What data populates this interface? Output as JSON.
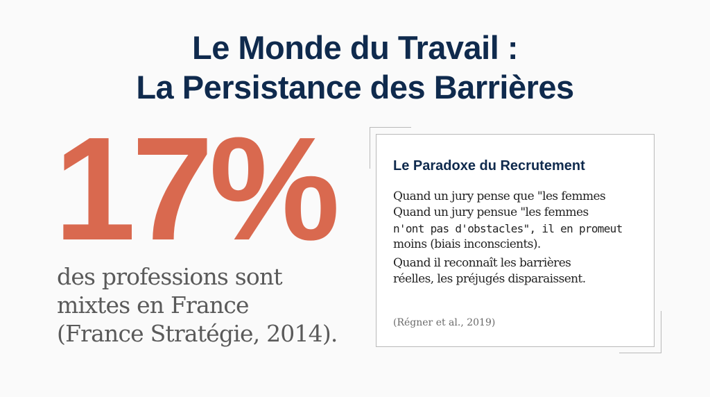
{
  "title": {
    "line1": "Le Monde du Travail :",
    "line2": "La Persistance des Barrières"
  },
  "stat": {
    "value": "17%",
    "caption_line1": "des professions sont",
    "caption_line2": "mixtes en France",
    "caption_line3": "(France Stratégie, 2014)."
  },
  "card": {
    "title": "Le Paradoxe du Recrutement",
    "body_lines": [
      "Quand un jury pense que \"les femmes",
      "Quand un jury pensue \"les femmes",
      "n'ont pas d'obstacles\", il en promeut",
      "moins (biais inconscients).",
      "Quand il reconnaît les barrières",
      "réelles, les préjugés disparaissent."
    ],
    "citation": "(Régner et al., 2019)"
  },
  "colors": {
    "title": "#0f2a4d",
    "accent": "#d9694f",
    "caption": "#5a5a5a",
    "border": "#b9b9b9"
  }
}
